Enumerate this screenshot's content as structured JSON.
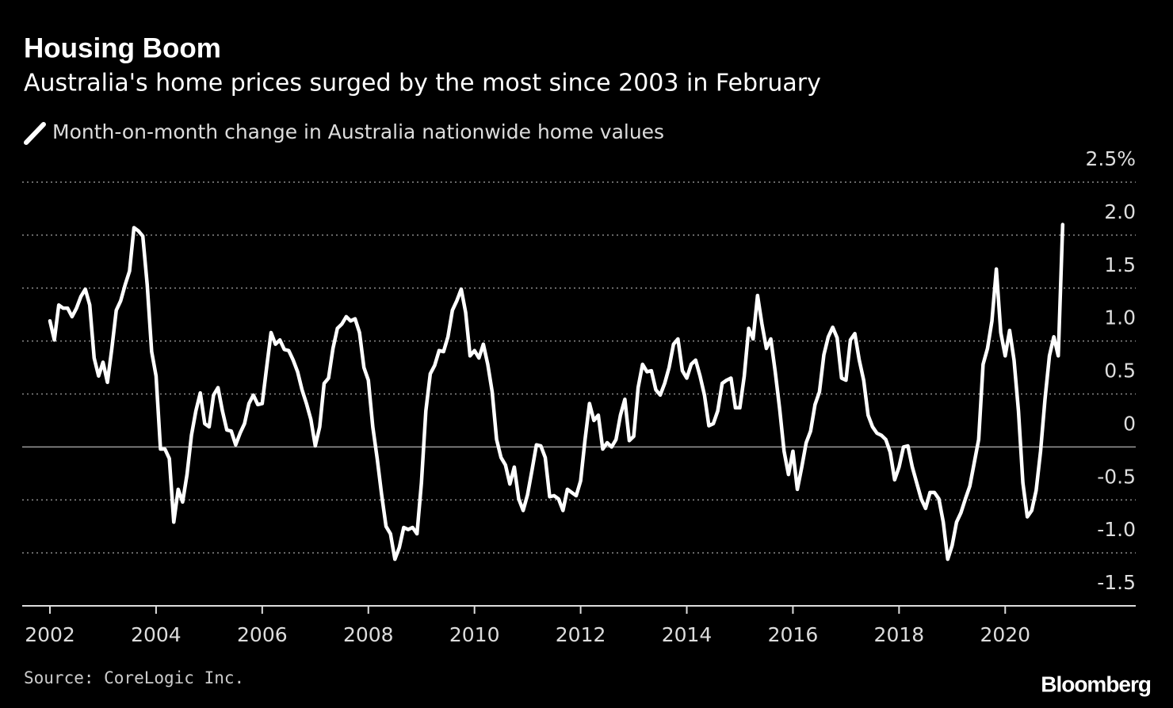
{
  "chart_data": {
    "type": "line",
    "title": "Housing Boom",
    "subtitle": "Australia's home prices surged by the most since 2003 in February",
    "source": "Source: CoreLogic Inc.",
    "brand": "Bloomberg",
    "categories": [
      "2002",
      null,
      null,
      null,
      null,
      null,
      null,
      null,
      null,
      null,
      null,
      null,
      null,
      null,
      null,
      null,
      null,
      null,
      null,
      null,
      null,
      null,
      null,
      null,
      "2004",
      null,
      null,
      null,
      null,
      null,
      null,
      null,
      null,
      null,
      null,
      null,
      null,
      null,
      null,
      null,
      null,
      null,
      null,
      null,
      null,
      null,
      null,
      null,
      "2006",
      null,
      null,
      null,
      null,
      null,
      null,
      null,
      null,
      null,
      null,
      null,
      null,
      null,
      null,
      null,
      null,
      null,
      null,
      null,
      null,
      null,
      null,
      null,
      "2008",
      null,
      null,
      null,
      null,
      null,
      null,
      null,
      null,
      null,
      null,
      null,
      null,
      null,
      null,
      null,
      null,
      null,
      null,
      null,
      null,
      null,
      null,
      null,
      "2010",
      null,
      null,
      null,
      null,
      null,
      null,
      null,
      null,
      null,
      null,
      null,
      null,
      null,
      null,
      null,
      null,
      null,
      null,
      null,
      null,
      null,
      null,
      null,
      "2012",
      null,
      null,
      null,
      null,
      null,
      null,
      null,
      null,
      null,
      null,
      null,
      null,
      null,
      null,
      null,
      null,
      null,
      null,
      null,
      null,
      null,
      null,
      null,
      "2014",
      null,
      null,
      null,
      null,
      null,
      null,
      null,
      null,
      null,
      null,
      null,
      null,
      null,
      null,
      null,
      null,
      null,
      null,
      null,
      null,
      null,
      null,
      null,
      "2016",
      null,
      null,
      null,
      null,
      null,
      null,
      null,
      null,
      null,
      null,
      null,
      null,
      null,
      null,
      null,
      null,
      null,
      null,
      null,
      null,
      null,
      null,
      null,
      "2018",
      null,
      null,
      null,
      null,
      null,
      null,
      null,
      null,
      null,
      null,
      null,
      null,
      null,
      null,
      null,
      null,
      null,
      null,
      null,
      null,
      null,
      null,
      null,
      "2020",
      null,
      null,
      null,
      null,
      null,
      null,
      null,
      null,
      null,
      null,
      null,
      null,
      null
    ],
    "series": [
      {
        "name": "Month-on-month change in Australia nationwide home values",
        "color": "#ffffff",
        "values": [
          1.19,
          1.01,
          1.34,
          1.31,
          1.31,
          1.23,
          1.31,
          1.42,
          1.49,
          1.34,
          0.84,
          0.67,
          0.8,
          0.61,
          0.93,
          1.29,
          1.38,
          1.53,
          1.66,
          2.07,
          2.04,
          1.99,
          1.53,
          0.9,
          0.67,
          -0.02,
          -0.02,
          -0.11,
          -0.71,
          -0.4,
          -0.52,
          -0.26,
          0.11,
          0.34,
          0.51,
          0.22,
          0.19,
          0.49,
          0.56,
          0.34,
          0.16,
          0.15,
          0.02,
          0.13,
          0.22,
          0.41,
          0.49,
          0.4,
          0.41,
          0.75,
          1.08,
          0.97,
          1.01,
          0.92,
          0.91,
          0.82,
          0.71,
          0.54,
          0.41,
          0.26,
          0.01,
          0.19,
          0.6,
          0.65,
          0.93,
          1.12,
          1.16,
          1.23,
          1.19,
          1.21,
          1.08,
          0.75,
          0.63,
          0.19,
          -0.11,
          -0.45,
          -0.75,
          -0.82,
          -1.06,
          -0.95,
          -0.76,
          -0.78,
          -0.76,
          -0.82,
          -0.34,
          0.34,
          0.69,
          0.77,
          0.91,
          0.9,
          1.04,
          1.29,
          1.38,
          1.49,
          1.27,
          0.86,
          0.91,
          0.84,
          0.97,
          0.78,
          0.52,
          0.07,
          -0.1,
          -0.17,
          -0.35,
          -0.19,
          -0.49,
          -0.6,
          -0.45,
          -0.22,
          0.02,
          0.01,
          -0.1,
          -0.47,
          -0.46,
          -0.49,
          -0.6,
          -0.4,
          -0.43,
          -0.46,
          -0.32,
          0.07,
          0.41,
          0.25,
          0.3,
          -0.02,
          0.04,
          0,
          0.07,
          0.3,
          0.45,
          0.06,
          0.1,
          0.56,
          0.78,
          0.71,
          0.72,
          0.54,
          0.49,
          0.6,
          0.75,
          0.97,
          1.02,
          0.72,
          0.65,
          0.78,
          0.82,
          0.67,
          0.49,
          0.2,
          0.22,
          0.34,
          0.6,
          0.63,
          0.65,
          0.37,
          0.37,
          0.67,
          1.12,
          1.02,
          1.43,
          1.16,
          0.93,
          1.02,
          0.71,
          0.36,
          -0.04,
          -0.26,
          -0.04,
          -0.4,
          -0.19,
          0.04,
          0.15,
          0.4,
          0.52,
          0.87,
          1.04,
          1.13,
          1.03,
          0.65,
          0.63,
          1.01,
          1.07,
          0.82,
          0.63,
          0.3,
          0.19,
          0.13,
          0.11,
          0.07,
          -0.05,
          -0.31,
          -0.19,
          0,
          0.01,
          -0.19,
          -0.34,
          -0.49,
          -0.58,
          -0.43,
          -0.43,
          -0.49,
          -0.71,
          -1.06,
          -0.93,
          -0.71,
          -0.62,
          -0.49,
          -0.37,
          -0.15,
          0.07,
          0.78,
          0.93,
          1.19,
          1.68,
          1.08,
          0.86,
          1.1,
          0.82,
          0.34,
          -0.34,
          -0.66,
          -0.6,
          -0.41,
          -0.04,
          0.45,
          0.86,
          1.04,
          0.86,
          2.1
        ]
      }
    ],
    "ylim": [
      -1.5,
      2.5
    ],
    "yticks": [
      {
        "value": 2.5,
        "label": "2.5%"
      },
      {
        "value": 2,
        "label": "2.0"
      },
      1.5,
      {
        "value": 1,
        "label": "1.0"
      },
      0.5,
      0,
      -0.5,
      {
        "value": -1,
        "label": "-1.0"
      },
      -1.5
    ],
    "grid": true
  }
}
